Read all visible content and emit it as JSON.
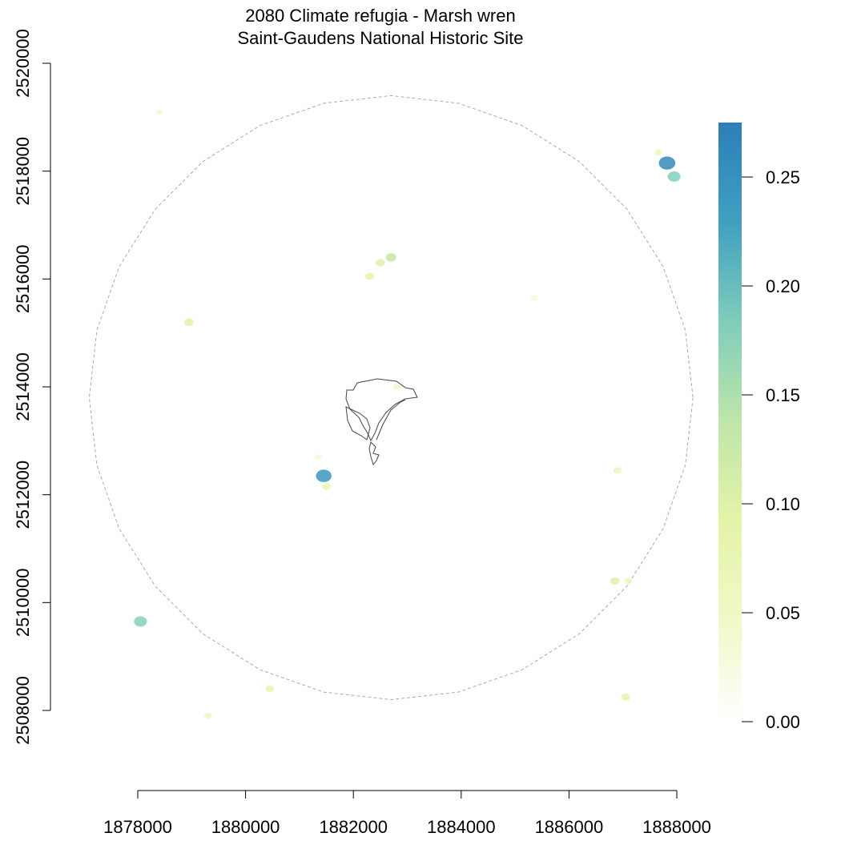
{
  "title": {
    "line1": "2080 Climate refugia - Marsh wren",
    "line2": "Saint-Gaudens National Historic Site"
  },
  "chart_data": {
    "type": "heatmap",
    "title": "2080 Climate refugia - Marsh wren",
    "subtitle": "Saint-Gaudens National Historic Site",
    "xlabel": "",
    "ylabel": "",
    "x_ticks": [
      1878000,
      1880000,
      1882000,
      1884000,
      1886000,
      1888000
    ],
    "x_tick_labels": [
      "1878000",
      "1880000",
      "1882000",
      "1884000",
      "1886000",
      "1888000"
    ],
    "y_ticks": [
      2508000,
      2510000,
      2512000,
      2514000,
      2516000,
      2518000,
      2520000
    ],
    "y_tick_labels": [
      "2508000",
      "2510000",
      "2512000",
      "2514000",
      "2516000",
      "2518000",
      "2520000"
    ],
    "xlim": [
      1878000,
      1888000
    ],
    "ylim": [
      2508000,
      2520000
    ],
    "legend": {
      "position": "right",
      "range": [
        0,
        0.275
      ],
      "ticks": [
        0.0,
        0.05,
        0.1,
        0.15,
        0.2,
        0.25
      ],
      "tick_labels": [
        "0.00",
        "0.05",
        "0.10",
        "0.15",
        "0.20",
        "0.25"
      ],
      "colors": [
        "#ffffff",
        "#f0f9c8",
        "#e4f4a8",
        "#bfe6a9",
        "#7fcdbb",
        "#41a0c0",
        "#2c7fb8"
      ]
    },
    "buffer": {
      "center": [
        1882700,
        2513800
      ],
      "radius": 5600,
      "style": "dashed",
      "color": "#aaaaaa"
    },
    "habitat_patches": [
      {
        "x": 1882700,
        "y": 2516400,
        "value": 0.13
      },
      {
        "x": 1882500,
        "y": 2516300,
        "value": 0.1
      },
      {
        "x": 1882300,
        "y": 2516050,
        "value": 0.09
      },
      {
        "x": 1887820,
        "y": 2518150,
        "value": 0.26
      },
      {
        "x": 1887950,
        "y": 2517900,
        "value": 0.18
      },
      {
        "x": 1887650,
        "y": 2518350,
        "value": 0.06
      },
      {
        "x": 1881450,
        "y": 2512350,
        "value": 0.24
      },
      {
        "x": 1881500,
        "y": 2512150,
        "value": 0.08
      },
      {
        "x": 1881350,
        "y": 2512700,
        "value": 0.04
      },
      {
        "x": 1878050,
        "y": 2509650,
        "value": 0.18
      },
      {
        "x": 1879300,
        "y": 2507900,
        "value": 0.06
      },
      {
        "x": 1878950,
        "y": 2515200,
        "value": 0.1
      },
      {
        "x": 1887050,
        "y": 2508250,
        "value": 0.09
      },
      {
        "x": 1886850,
        "y": 2510400,
        "value": 0.1
      },
      {
        "x": 1887100,
        "y": 2510400,
        "value": 0.06
      },
      {
        "x": 1886900,
        "y": 2512450,
        "value": 0.07
      },
      {
        "x": 1880450,
        "y": 2508400,
        "value": 0.08
      },
      {
        "x": 1882800,
        "y": 2514000,
        "value": 0.05
      },
      {
        "x": 1885350,
        "y": 2515650,
        "value": 0.04
      },
      {
        "x": 1878400,
        "y": 2519100,
        "value": 0.04
      }
    ]
  }
}
